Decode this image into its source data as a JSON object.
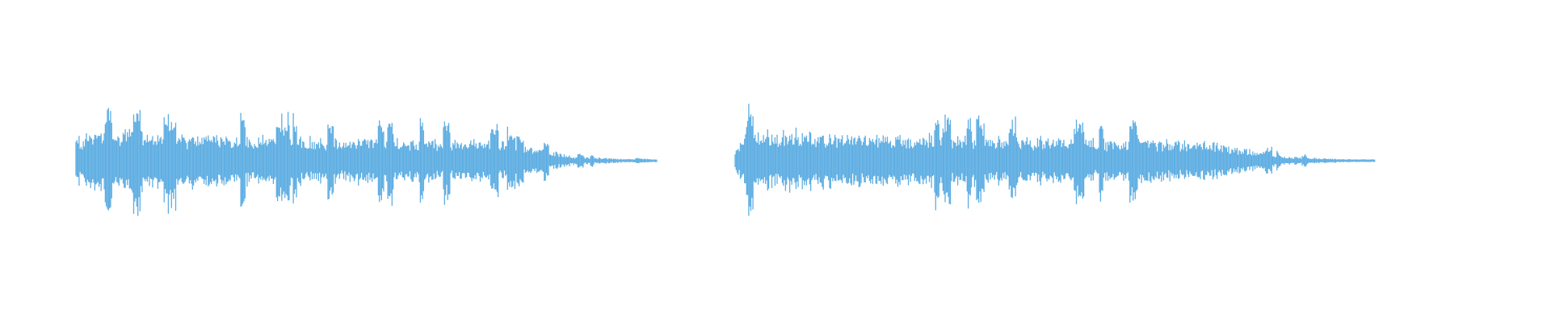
{
  "colors": {
    "waveform": "#5dade2",
    "background": "#ffffff"
  },
  "waveforms": [
    {
      "id": "left"
    },
    {
      "id": "right"
    }
  ]
}
